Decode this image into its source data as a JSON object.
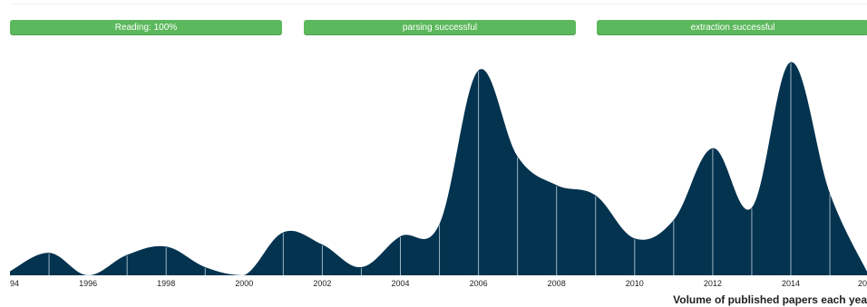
{
  "progress_bars": [
    {
      "label": "Reading: 100%",
      "percent": 100
    },
    {
      "label": "parsing successful",
      "percent": 100
    },
    {
      "label": "extraction successful",
      "percent": 100
    }
  ],
  "colors": {
    "progress": "#5cb85c",
    "area": "#04334f",
    "divider": "#9fb4c3"
  },
  "chart_data": {
    "type": "area",
    "caption": "Volume of published papers each yea",
    "x": [
      1994,
      1995,
      1996,
      1997,
      1998,
      1999,
      2000,
      2001,
      2002,
      2003,
      2004,
      2005,
      2006,
      2007,
      2008,
      2009,
      2010,
      2011,
      2012,
      2013,
      2014,
      2015,
      2016
    ],
    "values": [
      2,
      11,
      0,
      10,
      14,
      4,
      0,
      21,
      15,
      4,
      19,
      25,
      100,
      58,
      44,
      39,
      18,
      27,
      62,
      33,
      104,
      40,
      0
    ],
    "tick_labels": [
      "94",
      "1996",
      "1998",
      "2000",
      "2002",
      "2004",
      "2006",
      "2008",
      "2010",
      "2012",
      "2014",
      "20"
    ],
    "ylim": [
      0,
      110
    ],
    "grid": false
  }
}
